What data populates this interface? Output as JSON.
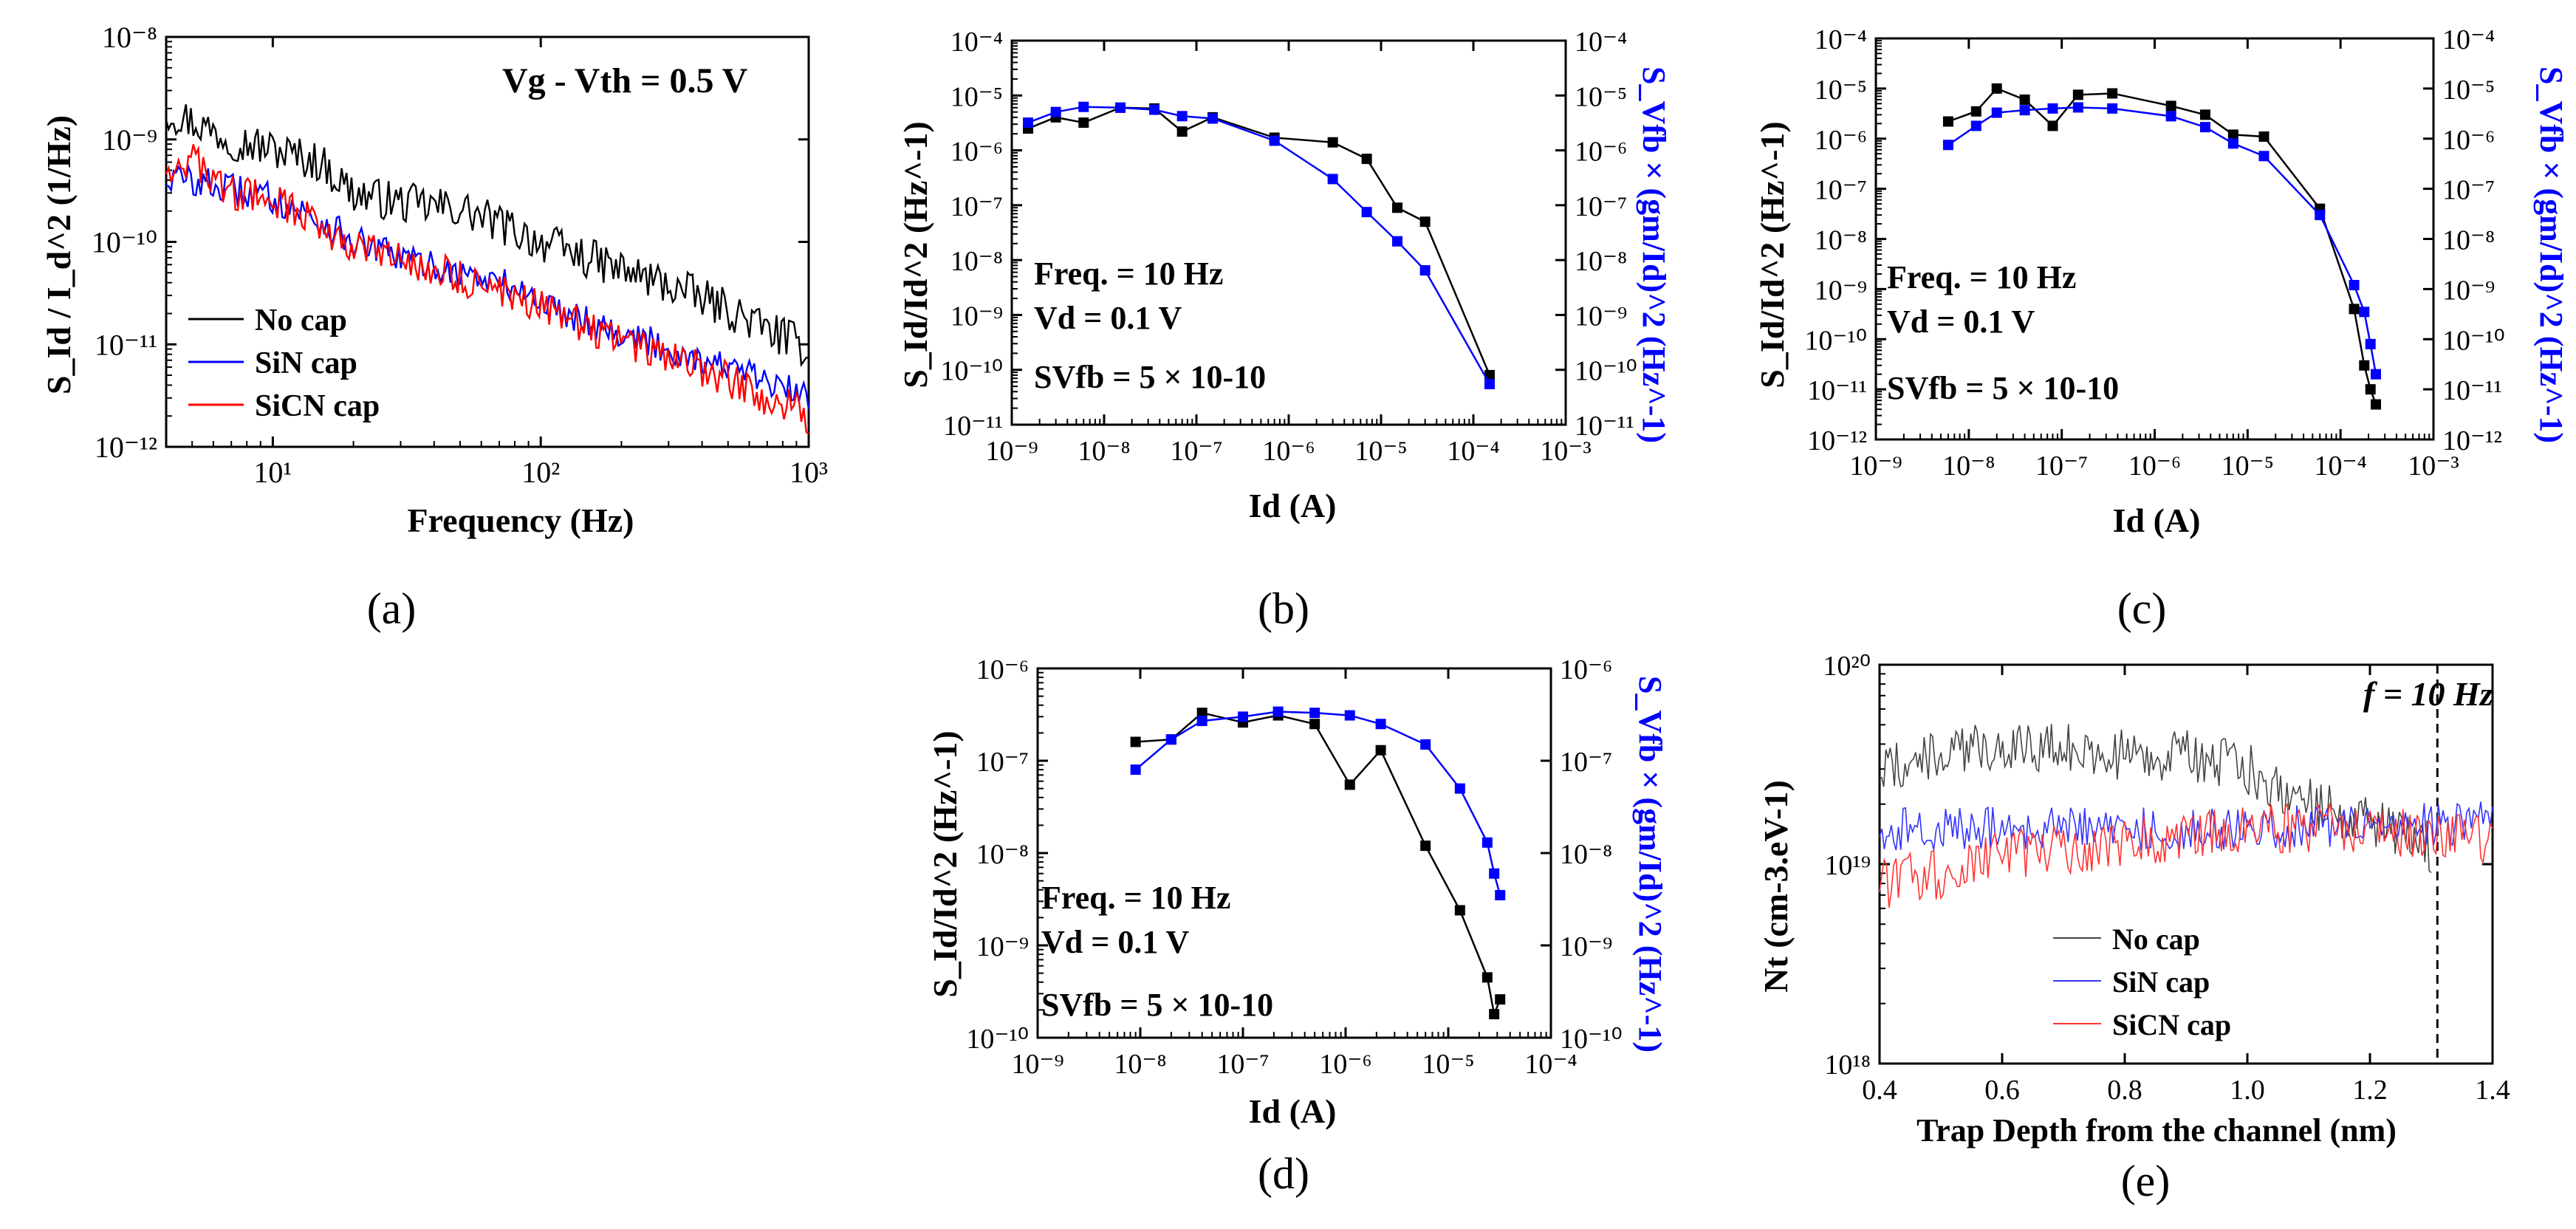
{
  "figure": {
    "panel_labels": [
      "(a)",
      "(b)",
      "(c)",
      "(d)",
      "(e)"
    ]
  },
  "chart_data": [
    {
      "id": "a",
      "type": "line",
      "xscale": "log",
      "yscale": "log",
      "xlim": [
        4,
        1000
      ],
      "ylim": [
        1e-12,
        1e-08
      ],
      "xlabel": "Frequency (Hz)",
      "ylabel": "S_Id / I_d^2 (1/Hz)",
      "x_ticks": [
        10,
        100,
        1000
      ],
      "y_ticks": [
        1e-12,
        1e-11,
        1e-10,
        1e-09,
        1e-08
      ],
      "annotation": "Vg - Vth = 0.5 V",
      "legend_position": "left",
      "series": [
        {
          "name": "No cap",
          "color": "#000000",
          "noise": 0.2,
          "x": [
            4,
            5,
            7,
            10,
            15,
            20,
            30,
            50,
            80,
            100,
            200,
            300,
            500,
            700,
            1000
          ],
          "values": [
            1.9e-09,
            1.5e-09,
            1e-09,
            8e-10,
            6e-10,
            3e-10,
            2.4e-10,
            2.1e-10,
            1.3e-10,
            1e-10,
            5.3e-11,
            3.8e-11,
            2.2e-11,
            1.4e-11,
            9e-12
          ]
        },
        {
          "name": "SiN cap",
          "color": "#0000ff",
          "noise": 0.16,
          "x": [
            4,
            5,
            7,
            10,
            15,
            20,
            30,
            50,
            80,
            100,
            200,
            300,
            500,
            700,
            1000
          ],
          "values": [
            4.2e-10,
            4e-10,
            3.2e-10,
            2.7e-10,
            1.6e-10,
            1e-10,
            7e-11,
            5e-11,
            3.6e-11,
            2.6e-11,
            1.3e-11,
            9e-12,
            6e-12,
            4.2e-12,
            3e-12
          ]
        },
        {
          "name": "SiCN cap",
          "color": "#ff0000",
          "noise": 0.18,
          "x": [
            4,
            5,
            7,
            10,
            15,
            20,
            30,
            50,
            80,
            100,
            200,
            300,
            500,
            700,
            1000
          ],
          "values": [
            5.5e-10,
            6.2e-10,
            3e-10,
            2.6e-10,
            1.5e-10,
            9e-11,
            6.5e-11,
            4.5e-11,
            3e-11,
            2.3e-11,
            1.1e-11,
            7.5e-12,
            4.5e-12,
            3e-12,
            2e-12
          ]
        }
      ]
    },
    {
      "id": "b",
      "type": "line",
      "xscale": "log",
      "yscale": "log",
      "xlim": [
        1e-09,
        0.001
      ],
      "ylim": [
        1e-11,
        0.0001
      ],
      "y2lim": [
        1e-11,
        0.0001
      ],
      "xlabel": "Id (A)",
      "ylabel": "S_Id/Id^2 (Hz^-1)",
      "y2label": "S_Vfb × (gm/Id)^2 (Hz^-1)",
      "x_ticks": [
        1e-09,
        1e-08,
        1e-07,
        1e-06,
        1e-05,
        0.0001,
        0.001
      ],
      "y_ticks": [
        1e-11,
        1e-10,
        1e-09,
        1e-08,
        1e-07,
        1e-06,
        1e-05,
        0.0001
      ],
      "annotations": [
        "Freq. = 10 Hz",
        "Vd = 0.1 V",
        "SVfb =  5 × 10-10"
      ],
      "series": [
        {
          "name": "S_Id/Id^2",
          "color": "#000000",
          "x": [
            1.5e-09,
            3e-09,
            6e-09,
            1.5e-08,
            3.5e-08,
            7e-08,
            1.5e-07,
            7e-07,
            3e-06,
            7e-06,
            1.5e-05,
            3e-05,
            0.00015
          ],
          "values": [
            2.5e-06,
            4e-06,
            3.2e-06,
            6e-06,
            5.8e-06,
            2.2e-06,
            4e-06,
            1.7e-06,
            1.4e-06,
            7e-07,
            9e-08,
            5e-08,
            8e-11
          ]
        },
        {
          "name": "S_Vfb × (gm/Id)^2",
          "color": "#0000ff",
          "x": [
            1.5e-09,
            3e-09,
            6e-09,
            1.5e-08,
            3.5e-08,
            7e-08,
            1.5e-07,
            7e-07,
            3e-06,
            7e-06,
            1.5e-05,
            3e-05,
            0.00015
          ],
          "values": [
            3.2e-06,
            5e-06,
            6.2e-06,
            6e-06,
            5.5e-06,
            4.2e-06,
            3.8e-06,
            1.5e-06,
            3e-07,
            7.5e-08,
            2.2e-08,
            6.5e-09,
            5.5e-11
          ]
        }
      ]
    },
    {
      "id": "c",
      "type": "line",
      "xscale": "log",
      "yscale": "log",
      "xlim": [
        1e-09,
        0.001
      ],
      "ylim": [
        1e-12,
        0.0001
      ],
      "y2lim": [
        1e-12,
        0.0001
      ],
      "xlabel": "Id (A)",
      "ylabel": "S_Id/Id^2 (Hz^-1)",
      "y2label": "S_Vfb × (gm/Id)^2 (Hz^-1)",
      "x_ticks": [
        1e-09,
        1e-08,
        1e-07,
        1e-06,
        1e-05,
        0.0001,
        0.001
      ],
      "y_ticks": [
        1e-12,
        1e-11,
        1e-10,
        1e-09,
        1e-08,
        1e-07,
        1e-06,
        1e-05,
        0.0001
      ],
      "annotations": [
        "Freq. = 10 Hz",
        "Vd = 0.1 V",
        "SVfb =  5 × 10-10"
      ],
      "series": [
        {
          "name": "S_Id/Id^2",
          "color": "#000000",
          "x": [
            6e-09,
            1.2e-08,
            2e-08,
            4e-08,
            8e-08,
            1.5e-07,
            3.5e-07,
            1.5e-06,
            3.5e-06,
            7e-06,
            1.5e-05,
            6e-05,
            0.00014,
            0.00018,
            0.00021,
            0.00024
          ],
          "values": [
            2.2e-06,
            3.5e-06,
            1e-05,
            6e-06,
            1.8e-06,
            7.5e-06,
            8e-06,
            4.5e-06,
            3e-06,
            1.2e-06,
            1.1e-06,
            4e-08,
            4e-10,
            3e-11,
            1e-11,
            5e-12
          ]
        },
        {
          "name": "S_Vfb × (gm/Id)^2",
          "color": "#0000ff",
          "x": [
            6e-09,
            1.2e-08,
            2e-08,
            4e-08,
            8e-08,
            1.5e-07,
            3.5e-07,
            1.5e-06,
            3.5e-06,
            7e-06,
            1.5e-05,
            6e-05,
            0.00014,
            0.00018,
            0.00021,
            0.00024
          ],
          "values": [
            7.5e-07,
            1.8e-06,
            3.3e-06,
            3.7e-06,
            4e-06,
            4.2e-06,
            4e-06,
            2.8e-06,
            1.7e-06,
            8e-07,
            4.5e-07,
            3e-08,
            1.2e-09,
            3.5e-10,
            8e-11,
            2e-11
          ]
        }
      ]
    },
    {
      "id": "d",
      "type": "line",
      "xscale": "log",
      "yscale": "log",
      "xlim": [
        1e-09,
        0.0001
      ],
      "ylim": [
        1e-10,
        1e-06
      ],
      "y2lim": [
        1e-10,
        1e-06
      ],
      "xlabel": "Id (A)",
      "ylabel": "S_Id/Id^2 (Hz^-1)",
      "y2label": "S_Vfb × (gm/Id)^2 (Hz^-1)",
      "x_ticks": [
        1e-09,
        1e-08,
        1e-07,
        1e-06,
        1e-05,
        0.0001
      ],
      "y_ticks": [
        1e-10,
        1e-09,
        1e-08,
        1e-07,
        1e-06
      ],
      "annotations": [
        "Freq. = 10 Hz",
        "Vd = 0.1 V",
        "SVfb = 5 × 10-10"
      ],
      "series": [
        {
          "name": "S_Id/Id^2",
          "color": "#000000",
          "x": [
            9e-09,
            2e-08,
            4e-08,
            1e-07,
            2.2e-07,
            5e-07,
            1.1e-06,
            2.2e-06,
            6e-06,
            1.3e-05,
            2.4e-05,
            2.8e-05,
            3.2e-05
          ],
          "values": [
            1.6e-07,
            1.7e-07,
            3.3e-07,
            2.6e-07,
            3.1e-07,
            2.5e-07,
            5.5e-08,
            1.3e-07,
            1.2e-08,
            2.4e-09,
            4.5e-10,
            1.8e-10,
            2.6e-10
          ]
        },
        {
          "name": "S_Vfb × (gm/Id)^2",
          "color": "#0000ff",
          "x": [
            9e-09,
            2e-08,
            4e-08,
            1e-07,
            2.2e-07,
            5e-07,
            1.1e-06,
            2.2e-06,
            6e-06,
            1.3e-05,
            2.4e-05,
            2.8e-05,
            3.2e-05
          ],
          "values": [
            8e-08,
            1.7e-07,
            2.7e-07,
            3e-07,
            3.4e-07,
            3.3e-07,
            3.1e-07,
            2.5e-07,
            1.5e-07,
            5e-08,
            1.3e-08,
            6e-09,
            3.5e-09
          ]
        }
      ]
    },
    {
      "id": "e",
      "type": "line",
      "xscale": "linear",
      "yscale": "log",
      "xlim": [
        0.4,
        1.4
      ],
      "ylim": [
        1e+18,
        1e+20
      ],
      "xlabel": "Trap Depth from the channel (nm)",
      "ylabel": "Nt (cm-3.eV-1)",
      "x_ticks": [
        0.4,
        0.6,
        0.8,
        1.0,
        1.2,
        1.4
      ],
      "y_ticks": [
        1e+18,
        1e+19,
        1e+20
      ],
      "annotation": "f = 10 Hz",
      "marker_line_x": 1.31,
      "legend_position": "bottom-left",
      "series": [
        {
          "name": "No cap",
          "color": "#444444",
          "noise": 0.13,
          "x": [
            0.4,
            0.5,
            0.6,
            0.7,
            0.8,
            0.9,
            1.0,
            1.05,
            1.1,
            1.2,
            1.3
          ],
          "values": [
            3e+19,
            3.5e+19,
            4e+19,
            3.8e+19,
            3.5e+19,
            3.5e+19,
            3e+19,
            2.5e+19,
            2e+19,
            1.6e+19,
            1.2e+19
          ]
        },
        {
          "name": "SiN cap",
          "color": "#3333ff",
          "noise": 0.11,
          "x": [
            0.4,
            0.6,
            0.8,
            1.0,
            1.2,
            1.4
          ],
          "values": [
            1.5e+19,
            1.5e+19,
            1.5e+19,
            1.5e+19,
            1.6e+19,
            1.6e+19
          ]
        },
        {
          "name": "SiCN cap",
          "color": "#ff3333",
          "noise": 0.13,
          "x": [
            0.4,
            0.5,
            0.6,
            0.8,
            1.0,
            1.2,
            1.4
          ],
          "values": [
            8e+18,
            9e+18,
            1.1e+19,
            1.3e+19,
            1.5e+19,
            1.5e+19,
            1.3e+19
          ]
        }
      ]
    }
  ]
}
